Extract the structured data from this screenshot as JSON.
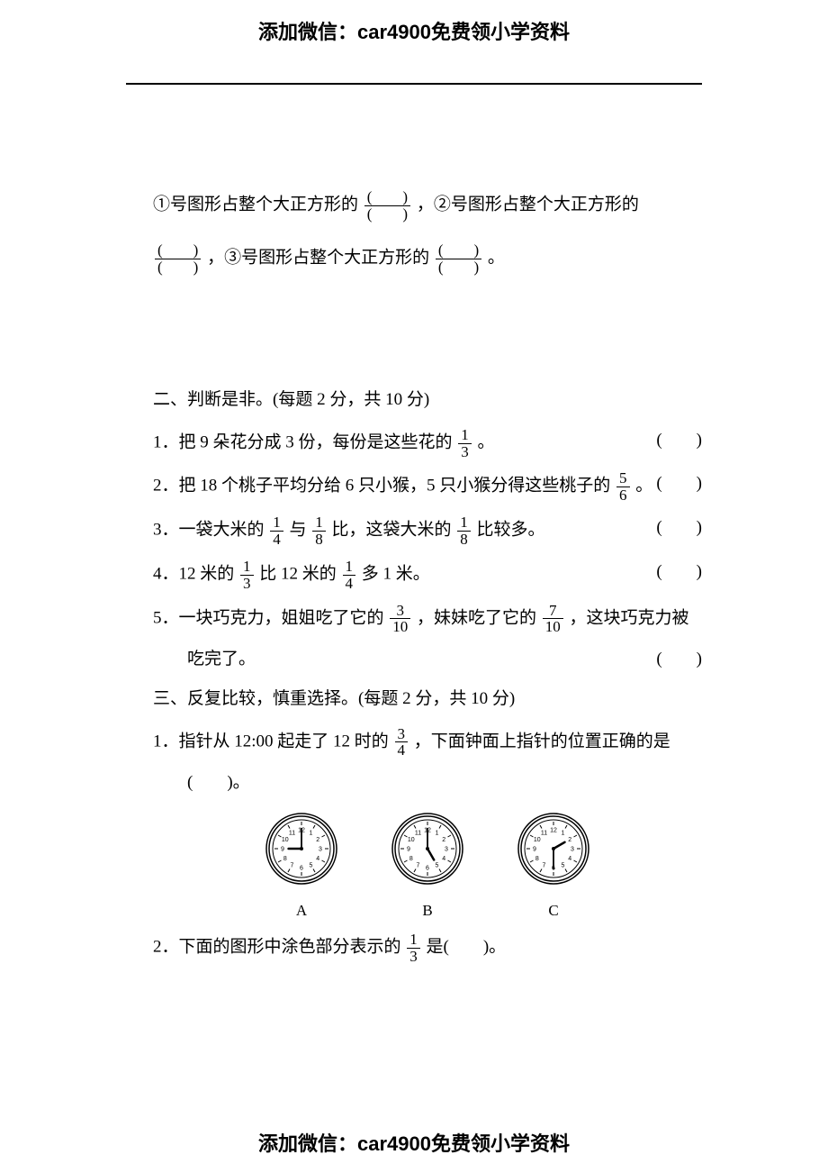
{
  "watermark": {
    "top": "添加微信：car4900免费领小学资料",
    "bottom": "添加微信：car4900免费领小学资料"
  },
  "frac_blank": {
    "num": "(　　)",
    "den": "(　　)"
  },
  "intro": {
    "line1_a": "①号图形占整个大正方形的",
    "line1_b": "，②号图形占整个大正方形的",
    "line2_a": "，③号图形占整个大正方形的",
    "line2_b": "。"
  },
  "section2": {
    "title": "二、判断是非。(每题 2 分，共 10 分)",
    "q1_a": "1．把 9 朵花分成 3 份，每份是这些花的",
    "q1_b": "。",
    "q1_frac": {
      "num": "1",
      "den": "3"
    },
    "q2_a": "2．把 18 个桃子平均分给 6 只小猴，5 只小猴分得这些桃子的",
    "q2_b": "。",
    "q2_frac": {
      "num": "5",
      "den": "6"
    },
    "q3_a": "3．一袋大米的",
    "q3_b": "与",
    "q3_c": "比，这袋大米的",
    "q3_d": "比较多。",
    "q3_frac1": {
      "num": "1",
      "den": "4"
    },
    "q3_frac2": {
      "num": "1",
      "den": "8"
    },
    "q3_frac3": {
      "num": "1",
      "den": "8"
    },
    "q4_a": "4．12 米的",
    "q4_b": "比 12 米的",
    "q4_c": "多 1 米。",
    "q4_frac1": {
      "num": "1",
      "den": "3"
    },
    "q4_frac2": {
      "num": "1",
      "den": "4"
    },
    "q5_a": "5．一块巧克力，姐姐吃了它的",
    "q5_b": "，妹妹吃了它的",
    "q5_c": "，这块巧克力被",
    "q5_d": "吃完了。",
    "q5_frac1": {
      "num": "3",
      "den": "10"
    },
    "q5_frac2": {
      "num": "7",
      "den": "10"
    },
    "paren": "(　　)"
  },
  "section3": {
    "title": "三、反复比较，慎重选择。(每题 2 分，共 10 分)",
    "q1_a": "1．指针从 12:00 起走了 12 时的",
    "q1_b": "，下面钟面上指针的位置正确的是",
    "q1_c": "(　　)。",
    "q1_frac": {
      "num": "3",
      "den": "4"
    },
    "q2_a": "2．下面的图形中涂色部分表示的",
    "q2_b": "是(　　)。",
    "q2_frac": {
      "num": "1",
      "den": "3"
    }
  },
  "clocks": {
    "labels": {
      "a": "A",
      "b": "B",
      "c": "C"
    },
    "style": {
      "size": 80,
      "rim_color": "#000000",
      "face_color": "#ffffff",
      "tick_color": "#000000",
      "hand_color": "#000000",
      "number_fontsize": 7
    },
    "data": [
      {
        "label": "A",
        "hour_angle": -90,
        "minute_angle": 0
      },
      {
        "label": "B",
        "hour_angle": 150,
        "minute_angle": 0
      },
      {
        "label": "C",
        "hour_angle": 60,
        "minute_angle": 180
      }
    ]
  }
}
